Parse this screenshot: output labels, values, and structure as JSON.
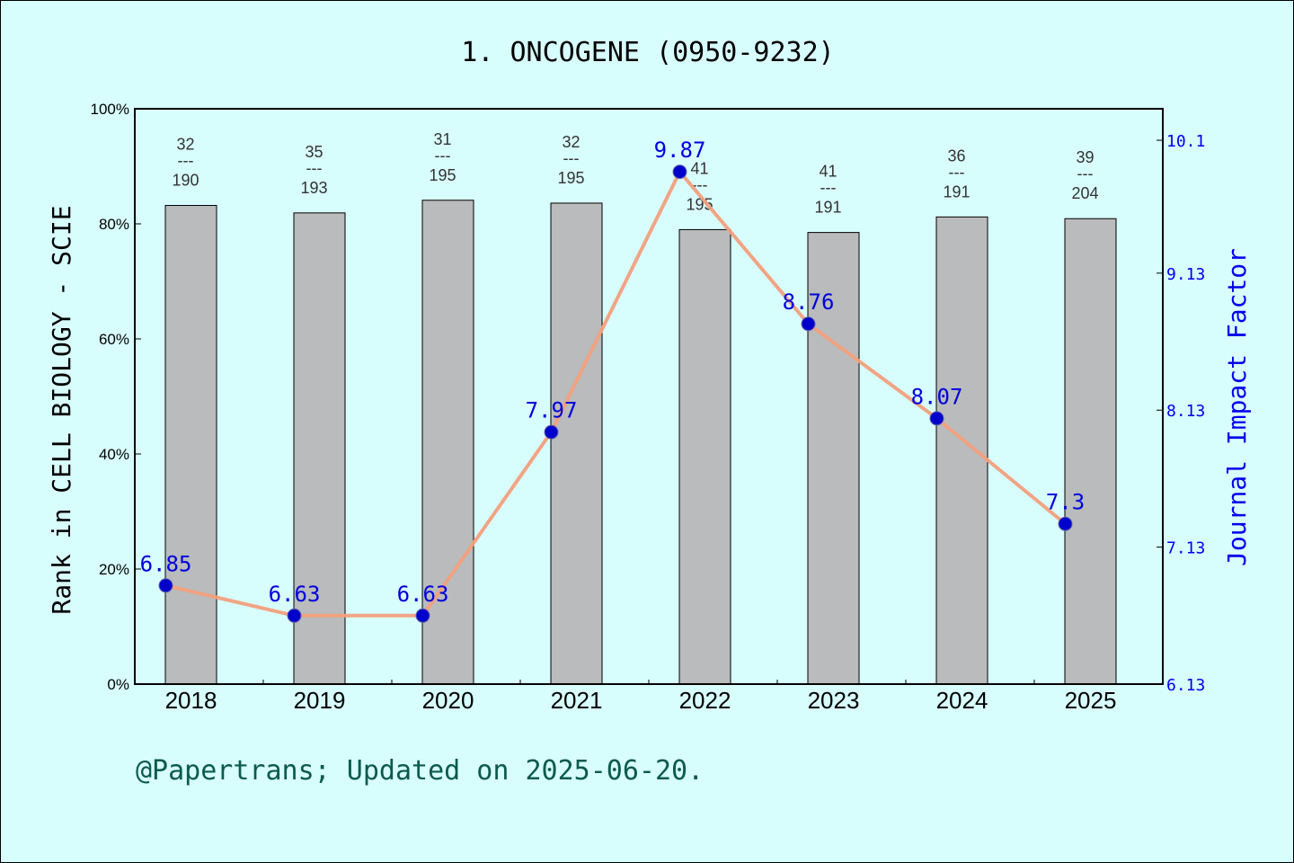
{
  "chart_data": {
    "type": "bar",
    "title": "1. ONCOGENE (0950-9232)",
    "ylabel": "Rank in CELL BIOLOGY - SCIE",
    "y2label": "Journal Impact Factor",
    "categories": [
      "2018",
      "2019",
      "2020",
      "2021",
      "2022",
      "2023",
      "2024",
      "2025"
    ],
    "ylim": [
      0,
      100
    ],
    "y_ticks": [
      "0%",
      "20%",
      "40%",
      "60%",
      "80%",
      "100%"
    ],
    "y2lim": [
      6.13,
      10.33
    ],
    "y2_ticks": [
      "6.13",
      "7.13",
      "8.13",
      "9.13",
      "10.1"
    ],
    "series": [
      {
        "axis": "left",
        "kind": "bar",
        "values": [
          83.2,
          81.9,
          84.1,
          83.6,
          79.0,
          78.5,
          81.2,
          80.9
        ],
        "color": "#b9bbbc"
      },
      {
        "axis": "right",
        "kind": "line",
        "values": [
          6.85,
          6.63,
          6.63,
          7.97,
          9.87,
          8.76,
          8.07,
          7.3
        ],
        "labels": [
          "6.85",
          "6.63",
          "6.63",
          "7.97",
          "9.87",
          "8.76",
          "8.07",
          "7.3"
        ],
        "color": "#f2a07d",
        "marker_color": "#0000cc"
      }
    ],
    "rank_labels": [
      {
        "rank": "32",
        "total": "190"
      },
      {
        "rank": "35",
        "total": "193"
      },
      {
        "rank": "31",
        "total": "195"
      },
      {
        "rank": "32",
        "total": "195"
      },
      {
        "rank": "41",
        "total": "195"
      },
      {
        "rank": "41",
        "total": "191"
      },
      {
        "rank": "36",
        "total": "191"
      },
      {
        "rank": "39",
        "total": "204"
      }
    ],
    "rank_separator": "---",
    "grid": false,
    "background": "#d8fdfd"
  },
  "footer": "@Papertrans; Updated on 2025-06-20."
}
